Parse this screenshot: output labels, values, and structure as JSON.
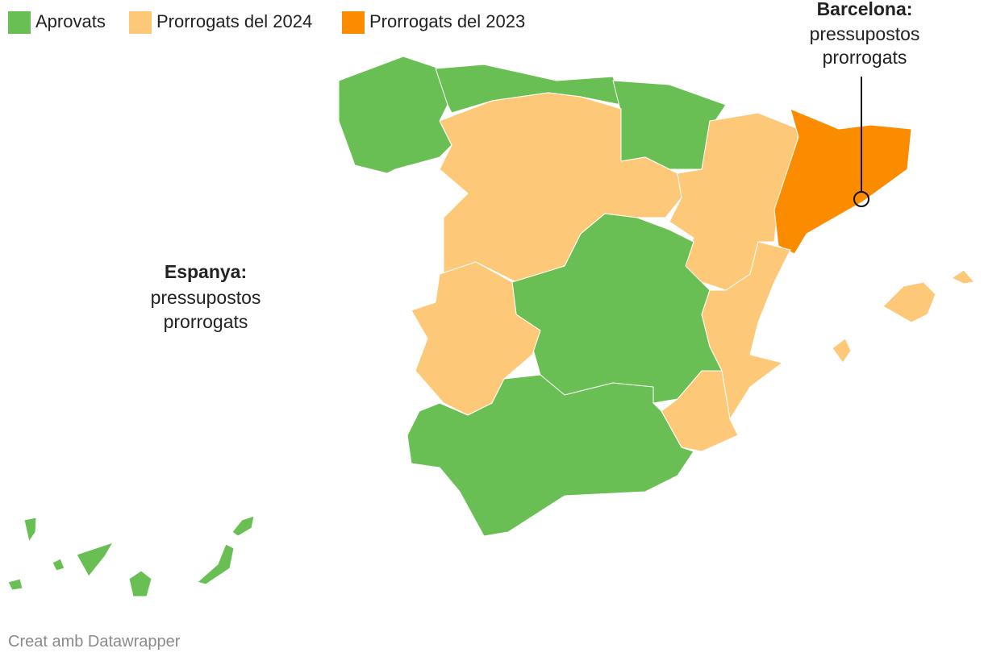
{
  "legend": {
    "items": [
      {
        "label": "Aprovats",
        "color": "#6abf54"
      },
      {
        "label": "Prorrogats del 2024",
        "color": "#fdc979"
      },
      {
        "label": "Prorrogats del 2023",
        "color": "#fb8c00"
      }
    ]
  },
  "annotations": [
    {
      "title": "Espanya:",
      "lines": [
        "pressupostos",
        "prorrogats"
      ]
    },
    {
      "title": "Barcelona:",
      "lines": [
        "pressupostos",
        "prorrogats"
      ]
    }
  ],
  "footer": "Creat amb Datawrapper"
}
